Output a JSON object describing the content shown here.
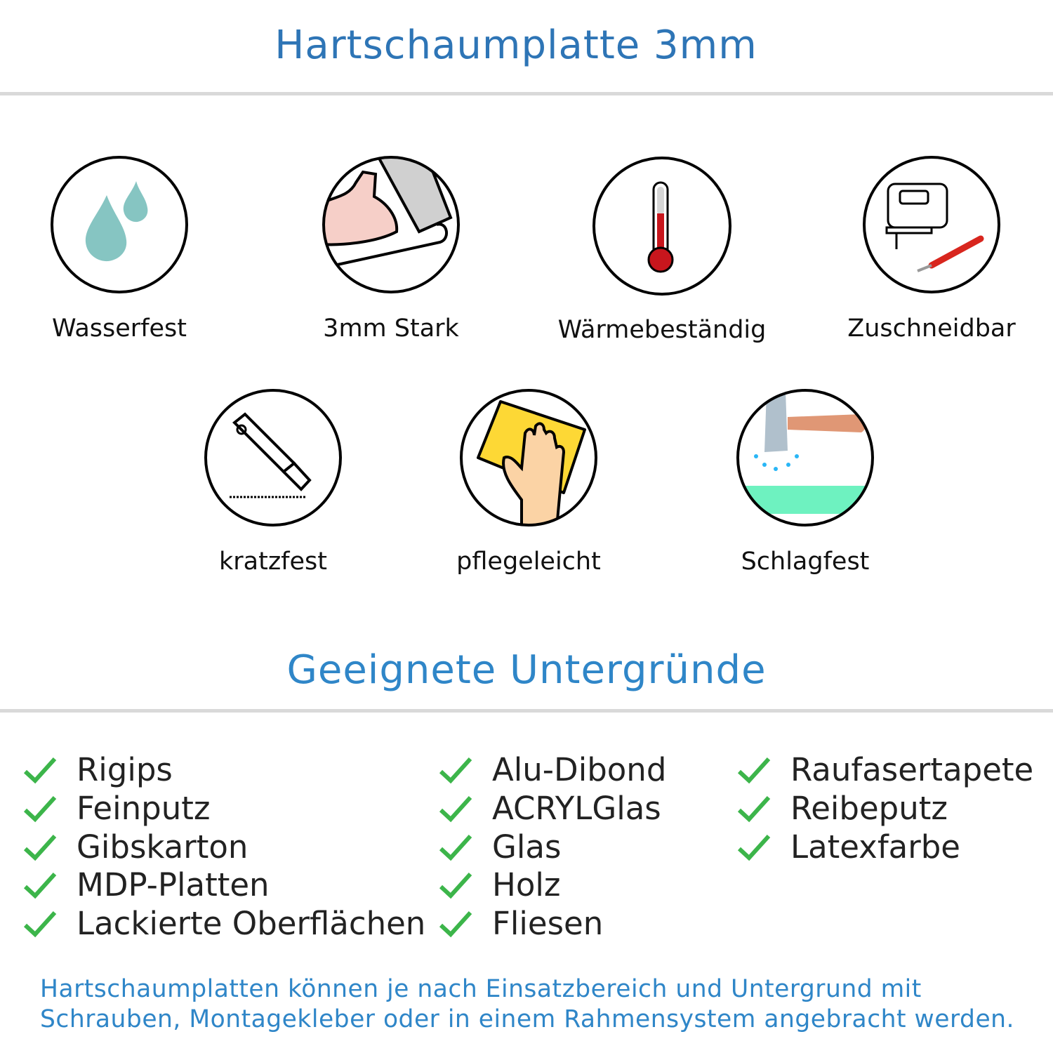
{
  "header": {
    "title": "Hartschaumplatte 3mm"
  },
  "features": [
    {
      "label": "Wasserfest",
      "icon": "water-drops-icon"
    },
    {
      "label": "3mm Stark",
      "icon": "strong-arm-icon"
    },
    {
      "label": "Wärmebeständig",
      "icon": "thermometer-icon"
    },
    {
      "label": "Zuschneidbar",
      "icon": "jigsaw-knife-icon"
    },
    {
      "label": "kratzfest",
      "icon": "cutter-icon"
    },
    {
      "label": "pflegeleicht",
      "icon": "cleaning-cloth-hand-icon"
    },
    {
      "label": "Schlagfest",
      "icon": "hammer-icon"
    }
  ],
  "surfaces": {
    "title": "Geeignete Untergründe",
    "check_color": "#3cb54a",
    "columns": [
      [
        "Rigips",
        "Feinputz",
        "Gibskarton",
        "MDP-Platten",
        "Lackierte Oberflächen"
      ],
      [
        "Alu-Dibond",
        "ACRYLGlas",
        "Glas",
        "Holz",
        "Fliesen"
      ],
      [
        "Raufasertapete",
        "Reibeputz",
        "Latexfarbe"
      ]
    ]
  },
  "note": {
    "line1": "Hartschaumplatten können je nach Einsatzbereich und Untergrund mit",
    "line2": "Schrauben, Montagekleber oder in einem Rahmensystem angebracht werden."
  }
}
